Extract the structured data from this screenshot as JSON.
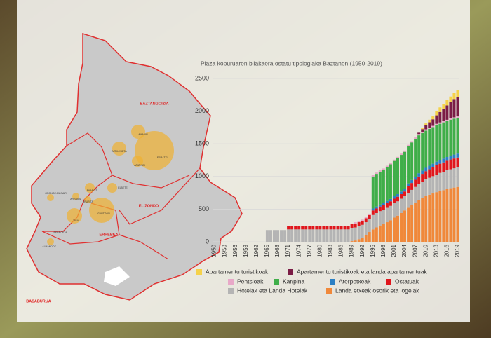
{
  "chart_data": {
    "type": "bar",
    "stacked": true,
    "title": "Plaza kopuruaren bilakaera ostatu tipologiaka Baztanen (1950-2019)",
    "categories": [
      "1950",
      null,
      null,
      "1953",
      null,
      null,
      "1956",
      null,
      null,
      "1959",
      null,
      null,
      "1962",
      null,
      null,
      "1965",
      null,
      null,
      "1968",
      null,
      null,
      "1971",
      null,
      null,
      "1974",
      null,
      null,
      "1977",
      null,
      null,
      "1980",
      null,
      null,
      "1983",
      null,
      null,
      "1986",
      null,
      null,
      "1989",
      null,
      null,
      "1992",
      null,
      null,
      "1995",
      null,
      null,
      "1998",
      null,
      null,
      "2001",
      null,
      null,
      "2004",
      null,
      null,
      "2007",
      null,
      null,
      "2010",
      null,
      null,
      "2013",
      null,
      null,
      "2016",
      null,
      null,
      "2019"
    ],
    "ylim": [
      0,
      2500
    ],
    "yticks": [
      0,
      500,
      1000,
      1500,
      2000,
      2500
    ],
    "grid": true,
    "series": [
      {
        "name": "Apartamentu turistikoak",
        "color": "#f5d24a",
        "values": [
          0,
          0,
          0,
          0,
          0,
          0,
          0,
          0,
          0,
          0,
          0,
          0,
          0,
          0,
          0,
          0,
          0,
          0,
          0,
          0,
          0,
          0,
          0,
          0,
          0,
          0,
          0,
          0,
          0,
          0,
          0,
          0,
          0,
          0,
          0,
          0,
          0,
          0,
          0,
          0,
          0,
          0,
          0,
          0,
          0,
          0,
          0,
          0,
          0,
          0,
          0,
          0,
          0,
          0,
          0,
          0,
          0,
          0,
          0,
          20,
          30,
          40,
          50,
          60,
          70,
          75,
          80,
          85,
          90,
          100
        ]
      },
      {
        "name": "Apartamentu turistikoak  eta landa apartamentuak",
        "color": "#7b1c45",
        "values": [
          0,
          0,
          0,
          0,
          0,
          0,
          0,
          0,
          0,
          0,
          0,
          0,
          0,
          0,
          0,
          0,
          0,
          0,
          0,
          0,
          0,
          0,
          0,
          0,
          0,
          0,
          0,
          0,
          0,
          0,
          0,
          0,
          0,
          0,
          0,
          0,
          0,
          0,
          0,
          0,
          0,
          0,
          0,
          0,
          0,
          0,
          0,
          0,
          0,
          0,
          0,
          0,
          0,
          0,
          0,
          0,
          0,
          0,
          20,
          40,
          60,
          80,
          100,
          130,
          160,
          190,
          220,
          250,
          280,
          300
        ]
      },
      {
        "name": "Pentsioak",
        "color": "#e8a8c8",
        "values": [
          0,
          0,
          0,
          0,
          0,
          0,
          0,
          0,
          0,
          0,
          0,
          0,
          0,
          0,
          0,
          0,
          0,
          0,
          0,
          0,
          0,
          0,
          0,
          0,
          0,
          0,
          0,
          0,
          0,
          0,
          0,
          0,
          0,
          0,
          0,
          0,
          0,
          0,
          0,
          0,
          20,
          20,
          20,
          20,
          20,
          20,
          20,
          20,
          20,
          20,
          20,
          20,
          20,
          20,
          20,
          20,
          20,
          20,
          20,
          20,
          20,
          20,
          20,
          20,
          20,
          20,
          20,
          20,
          20,
          20
        ]
      },
      {
        "name": "Kanpina",
        "color": "#3fae49",
        "values": [
          0,
          0,
          0,
          0,
          0,
          0,
          0,
          0,
          0,
          0,
          0,
          0,
          0,
          0,
          0,
          0,
          0,
          0,
          0,
          0,
          0,
          0,
          0,
          0,
          0,
          0,
          0,
          0,
          0,
          0,
          0,
          0,
          0,
          0,
          0,
          0,
          0,
          0,
          0,
          0,
          0,
          0,
          0,
          0,
          0,
          490,
          500,
          505,
          510,
          520,
          530,
          540,
          550,
          560,
          565,
          570,
          575,
          580,
          580,
          575,
          570,
          565,
          560,
          560,
          555,
          555,
          550,
          550,
          550,
          550
        ]
      },
      {
        "name": "Aterpetxeak",
        "color": "#2a7fc4",
        "values": [
          0,
          0,
          0,
          0,
          0,
          0,
          0,
          0,
          0,
          0,
          0,
          0,
          0,
          0,
          0,
          0,
          0,
          0,
          0,
          0,
          0,
          0,
          0,
          0,
          0,
          0,
          0,
          0,
          0,
          0,
          0,
          0,
          0,
          0,
          0,
          0,
          0,
          0,
          0,
          0,
          0,
          0,
          0,
          0,
          0,
          30,
          30,
          30,
          32,
          34,
          36,
          38,
          40,
          40,
          42,
          44,
          46,
          48,
          50,
          50,
          52,
          54,
          55,
          56,
          57,
          58,
          58,
          59,
          60,
          60
        ]
      },
      {
        "name": "Ostatuak",
        "color": "#e0161c",
        "values": [
          0,
          0,
          0,
          0,
          0,
          0,
          0,
          0,
          0,
          0,
          0,
          0,
          0,
          0,
          0,
          0,
          0,
          0,
          0,
          0,
          0,
          50,
          50,
          50,
          50,
          50,
          50,
          50,
          50,
          50,
          50,
          50,
          50,
          50,
          50,
          50,
          50,
          50,
          50,
          60,
          60,
          60,
          60,
          60,
          60,
          70,
          70,
          70,
          70,
          70,
          70,
          70,
          70,
          70,
          70,
          100,
          105,
          110,
          115,
          120,
          125,
          130,
          135,
          140,
          140,
          145,
          145,
          150,
          150,
          150
        ]
      },
      {
        "name": "Hotelak eta Landa Hotelak",
        "color": "#b4b4b4",
        "values": [
          0,
          0,
          0,
          0,
          0,
          0,
          0,
          0,
          0,
          0,
          0,
          0,
          0,
          0,
          0,
          180,
          180,
          180,
          180,
          180,
          180,
          190,
          190,
          190,
          190,
          190,
          190,
          190,
          190,
          190,
          190,
          190,
          190,
          190,
          190,
          190,
          190,
          190,
          190,
          200,
          200,
          200,
          200,
          200,
          200,
          220,
          220,
          220,
          220,
          220,
          220,
          220,
          220,
          220,
          220,
          230,
          235,
          240,
          245,
          250,
          255,
          260,
          265,
          270,
          275,
          280,
          285,
          290,
          295,
          300
        ]
      },
      {
        "name": "Landa etxeak osorik eta logelak",
        "color": "#f0883a",
        "values": [
          0,
          0,
          0,
          0,
          0,
          0,
          0,
          0,
          0,
          0,
          0,
          0,
          0,
          0,
          0,
          0,
          0,
          0,
          0,
          0,
          0,
          0,
          0,
          0,
          0,
          0,
          0,
          0,
          0,
          0,
          0,
          0,
          0,
          0,
          0,
          0,
          0,
          0,
          0,
          10,
          20,
          40,
          60,
          100,
          150,
          190,
          220,
          250,
          270,
          300,
          330,
          370,
          400,
          440,
          480,
          520,
          560,
          600,
          640,
          670,
          700,
          720,
          740,
          760,
          780,
          790,
          810,
          820,
          830,
          840
        ]
      }
    ]
  },
  "map": {
    "regions": [
      "BAZTANGOIZIA",
      "ELIZONDO",
      "ERREBEA",
      "BASABURUA"
    ],
    "towns": [
      "AMAIUR",
      "AZPILKUETA",
      "ERRATZU",
      "ARIZKUN",
      "ORONOZ-MUGAIRI",
      "LEKAROZ",
      "IRURITA",
      "ARRAIOZ",
      "ZIGA",
      "GARTZAIN",
      "BERROETA",
      "ALMANDOZ",
      "ELBETE"
    ]
  }
}
